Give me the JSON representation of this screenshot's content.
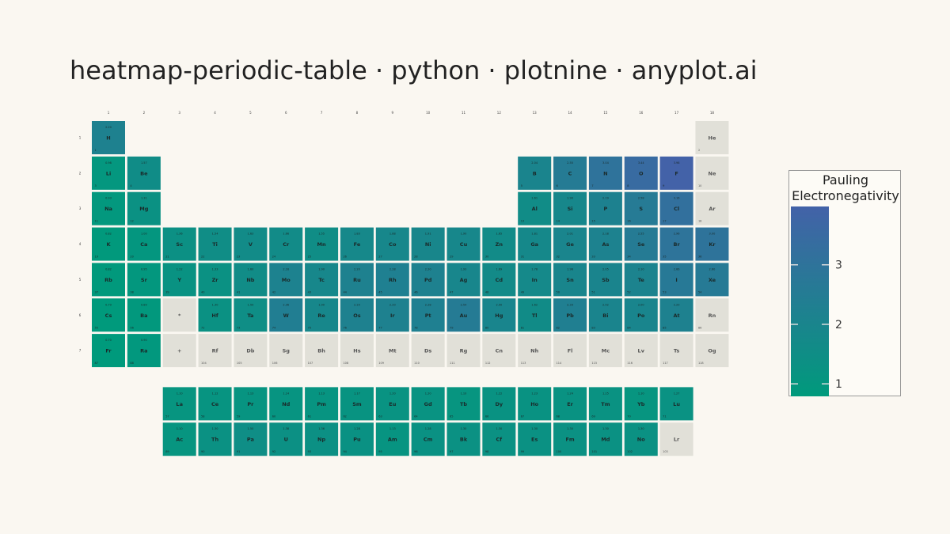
{
  "title": "heatmap-periodic-table · python · plotnine · anyplot.ai",
  "legend": {
    "title_line1": "Pauling",
    "title_line2": "Electronegativity",
    "ticks": [
      1,
      2,
      3
    ]
  },
  "colors": {
    "low": "#009a7c",
    "high": "#4362a8",
    "missing": "#e1e0d8",
    "background": "#faf7f1"
  },
  "chart_data": {
    "type": "heatmap",
    "title": "heatmap-periodic-table · python · plotnine · anyplot.ai",
    "colorbar_label": "Pauling Electronegativity",
    "color_range": [
      0.79,
      3.98
    ],
    "group_labels": [
      "1",
      "2",
      "3",
      "4",
      "5",
      "6",
      "7",
      "8",
      "9",
      "10",
      "11",
      "12",
      "13",
      "14",
      "15",
      "16",
      "17",
      "18"
    ],
    "period_labels": [
      "1",
      "2",
      "3",
      "4",
      "5",
      "6",
      "7"
    ],
    "elements": [
      {
        "n": 1,
        "s": "H",
        "p": 1,
        "g": 1,
        "en": 2.2
      },
      {
        "n": 2,
        "s": "He",
        "p": 1,
        "g": 18,
        "en": null
      },
      {
        "n": 3,
        "s": "Li",
        "p": 2,
        "g": 1,
        "en": 0.98
      },
      {
        "n": 4,
        "s": "Be",
        "p": 2,
        "g": 2,
        "en": 1.57
      },
      {
        "n": 5,
        "s": "B",
        "p": 2,
        "g": 13,
        "en": 2.04
      },
      {
        "n": 6,
        "s": "C",
        "p": 2,
        "g": 14,
        "en": 2.55
      },
      {
        "n": 7,
        "s": "N",
        "p": 2,
        "g": 15,
        "en": 3.04
      },
      {
        "n": 8,
        "s": "O",
        "p": 2,
        "g": 16,
        "en": 3.44
      },
      {
        "n": 9,
        "s": "F",
        "p": 2,
        "g": 17,
        "en": 3.98
      },
      {
        "n": 10,
        "s": "Ne",
        "p": 2,
        "g": 18,
        "en": null
      },
      {
        "n": 11,
        "s": "Na",
        "p": 3,
        "g": 1,
        "en": 0.93
      },
      {
        "n": 12,
        "s": "Mg",
        "p": 3,
        "g": 2,
        "en": 1.31
      },
      {
        "n": 13,
        "s": "Al",
        "p": 3,
        "g": 13,
        "en": 1.61
      },
      {
        "n": 14,
        "s": "Si",
        "p": 3,
        "g": 14,
        "en": 1.9
      },
      {
        "n": 15,
        "s": "P",
        "p": 3,
        "g": 15,
        "en": 2.19
      },
      {
        "n": 16,
        "s": "S",
        "p": 3,
        "g": 16,
        "en": 2.58
      },
      {
        "n": 17,
        "s": "Cl",
        "p": 3,
        "g": 17,
        "en": 3.16
      },
      {
        "n": 18,
        "s": "Ar",
        "p": 3,
        "g": 18,
        "en": null
      },
      {
        "n": 19,
        "s": "K",
        "p": 4,
        "g": 1,
        "en": 0.82
      },
      {
        "n": 20,
        "s": "Ca",
        "p": 4,
        "g": 2,
        "en": 1.0
      },
      {
        "n": 21,
        "s": "Sc",
        "p": 4,
        "g": 3,
        "en": 1.36
      },
      {
        "n": 22,
        "s": "Ti",
        "p": 4,
        "g": 4,
        "en": 1.54
      },
      {
        "n": 23,
        "s": "V",
        "p": 4,
        "g": 5,
        "en": 1.63
      },
      {
        "n": 24,
        "s": "Cr",
        "p": 4,
        "g": 6,
        "en": 1.66
      },
      {
        "n": 25,
        "s": "Mn",
        "p": 4,
        "g": 7,
        "en": 1.55
      },
      {
        "n": 26,
        "s": "Fe",
        "p": 4,
        "g": 8,
        "en": 1.83
      },
      {
        "n": 27,
        "s": "Co",
        "p": 4,
        "g": 9,
        "en": 1.88
      },
      {
        "n": 28,
        "s": "Ni",
        "p": 4,
        "g": 10,
        "en": 1.91
      },
      {
        "n": 29,
        "s": "Cu",
        "p": 4,
        "g": 11,
        "en": 1.9
      },
      {
        "n": 30,
        "s": "Zn",
        "p": 4,
        "g": 12,
        "en": 1.65
      },
      {
        "n": 31,
        "s": "Ga",
        "p": 4,
        "g": 13,
        "en": 1.81
      },
      {
        "n": 32,
        "s": "Ge",
        "p": 4,
        "g": 14,
        "en": 2.01
      },
      {
        "n": 33,
        "s": "As",
        "p": 4,
        "g": 15,
        "en": 2.18
      },
      {
        "n": 34,
        "s": "Se",
        "p": 4,
        "g": 16,
        "en": 2.55
      },
      {
        "n": 35,
        "s": "Br",
        "p": 4,
        "g": 17,
        "en": 2.96
      },
      {
        "n": 36,
        "s": "Kr",
        "p": 4,
        "g": 18,
        "en": 3.0
      },
      {
        "n": 37,
        "s": "Rb",
        "p": 5,
        "g": 1,
        "en": 0.82
      },
      {
        "n": 38,
        "s": "Sr",
        "p": 5,
        "g": 2,
        "en": 0.95
      },
      {
        "n": 39,
        "s": "Y",
        "p": 5,
        "g": 3,
        "en": 1.22
      },
      {
        "n": 40,
        "s": "Zr",
        "p": 5,
        "g": 4,
        "en": 1.33
      },
      {
        "n": 41,
        "s": "Nb",
        "p": 5,
        "g": 5,
        "en": 1.6
      },
      {
        "n": 42,
        "s": "Mo",
        "p": 5,
        "g": 6,
        "en": 2.16
      },
      {
        "n": 43,
        "s": "Tc",
        "p": 5,
        "g": 7,
        "en": 1.9
      },
      {
        "n": 44,
        "s": "Ru",
        "p": 5,
        "g": 8,
        "en": 2.2
      },
      {
        "n": 45,
        "s": "Rh",
        "p": 5,
        "g": 9,
        "en": 2.28
      },
      {
        "n": 46,
        "s": "Pd",
        "p": 5,
        "g": 10,
        "en": 2.2
      },
      {
        "n": 47,
        "s": "Ag",
        "p": 5,
        "g": 11,
        "en": 1.93
      },
      {
        "n": 48,
        "s": "Cd",
        "p": 5,
        "g": 12,
        "en": 1.69
      },
      {
        "n": 49,
        "s": "In",
        "p": 5,
        "g": 13,
        "en": 1.78
      },
      {
        "n": 50,
        "s": "Sn",
        "p": 5,
        "g": 14,
        "en": 1.96
      },
      {
        "n": 51,
        "s": "Sb",
        "p": 5,
        "g": 15,
        "en": 2.05
      },
      {
        "n": 52,
        "s": "Te",
        "p": 5,
        "g": 16,
        "en": 2.1
      },
      {
        "n": 53,
        "s": "I",
        "p": 5,
        "g": 17,
        "en": 2.66
      },
      {
        "n": 54,
        "s": "Xe",
        "p": 5,
        "g": 18,
        "en": 2.6
      },
      {
        "n": 55,
        "s": "Cs",
        "p": 6,
        "g": 1,
        "en": 0.79
      },
      {
        "n": 56,
        "s": "Ba",
        "p": 6,
        "g": 2,
        "en": 0.89
      },
      {
        "n": null,
        "s": "*",
        "p": 6,
        "g": 3,
        "en": null
      },
      {
        "n": 72,
        "s": "Hf",
        "p": 6,
        "g": 4,
        "en": 1.3
      },
      {
        "n": 73,
        "s": "Ta",
        "p": 6,
        "g": 5,
        "en": 1.5
      },
      {
        "n": 74,
        "s": "W",
        "p": 6,
        "g": 6,
        "en": 2.36
      },
      {
        "n": 75,
        "s": "Re",
        "p": 6,
        "g": 7,
        "en": 1.9
      },
      {
        "n": 76,
        "s": "Os",
        "p": 6,
        "g": 8,
        "en": 2.2
      },
      {
        "n": 77,
        "s": "Ir",
        "p": 6,
        "g": 9,
        "en": 2.2
      },
      {
        "n": 78,
        "s": "Pt",
        "p": 6,
        "g": 10,
        "en": 2.28
      },
      {
        "n": 79,
        "s": "Au",
        "p": 6,
        "g": 11,
        "en": 2.54
      },
      {
        "n": 80,
        "s": "Hg",
        "p": 6,
        "g": 12,
        "en": 2.0
      },
      {
        "n": 81,
        "s": "Tl",
        "p": 6,
        "g": 13,
        "en": 1.62
      },
      {
        "n": 82,
        "s": "Pb",
        "p": 6,
        "g": 14,
        "en": 2.33
      },
      {
        "n": 83,
        "s": "Bi",
        "p": 6,
        "g": 15,
        "en": 2.02
      },
      {
        "n": 84,
        "s": "Po",
        "p": 6,
        "g": 16,
        "en": 2.0
      },
      {
        "n": 85,
        "s": "At",
        "p": 6,
        "g": 17,
        "en": 2.2
      },
      {
        "n": 86,
        "s": "Rn",
        "p": 6,
        "g": 18,
        "en": null
      },
      {
        "n": 87,
        "s": "Fr",
        "p": 7,
        "g": 1,
        "en": 0.7
      },
      {
        "n": 88,
        "s": "Ra",
        "p": 7,
        "g": 2,
        "en": 0.9
      },
      {
        "n": null,
        "s": "+",
        "p": 7,
        "g": 3,
        "en": null
      },
      {
        "n": 104,
        "s": "Rf",
        "p": 7,
        "g": 4,
        "en": null
      },
      {
        "n": 105,
        "s": "Db",
        "p": 7,
        "g": 5,
        "en": null
      },
      {
        "n": 106,
        "s": "Sg",
        "p": 7,
        "g": 6,
        "en": null
      },
      {
        "n": 107,
        "s": "Bh",
        "p": 7,
        "g": 7,
        "en": null
      },
      {
        "n": 108,
        "s": "Hs",
        "p": 7,
        "g": 8,
        "en": null
      },
      {
        "n": 109,
        "s": "Mt",
        "p": 7,
        "g": 9,
        "en": null
      },
      {
        "n": 110,
        "s": "Ds",
        "p": 7,
        "g": 10,
        "en": null
      },
      {
        "n": 111,
        "s": "Rg",
        "p": 7,
        "g": 11,
        "en": null
      },
      {
        "n": 112,
        "s": "Cn",
        "p": 7,
        "g": 12,
        "en": null
      },
      {
        "n": 113,
        "s": "Nh",
        "p": 7,
        "g": 13,
        "en": null
      },
      {
        "n": 114,
        "s": "Fl",
        "p": 7,
        "g": 14,
        "en": null
      },
      {
        "n": 115,
        "s": "Mc",
        "p": 7,
        "g": 15,
        "en": null
      },
      {
        "n": 116,
        "s": "Lv",
        "p": 7,
        "g": 16,
        "en": null
      },
      {
        "n": 117,
        "s": "Ts",
        "p": 7,
        "g": 17,
        "en": null
      },
      {
        "n": 118,
        "s": "Og",
        "p": 7,
        "g": 18,
        "en": null
      },
      {
        "n": 57,
        "s": "La",
        "p": "La",
        "g": 3,
        "en": 1.1
      },
      {
        "n": 58,
        "s": "Ce",
        "p": "La",
        "g": 4,
        "en": 1.12
      },
      {
        "n": 59,
        "s": "Pr",
        "p": "La",
        "g": 5,
        "en": 1.13
      },
      {
        "n": 60,
        "s": "Nd",
        "p": "La",
        "g": 6,
        "en": 1.14
      },
      {
        "n": 61,
        "s": "Pm",
        "p": "La",
        "g": 7,
        "en": 1.13
      },
      {
        "n": 62,
        "s": "Sm",
        "p": "La",
        "g": 8,
        "en": 1.17
      },
      {
        "n": 63,
        "s": "Eu",
        "p": "La",
        "g": 9,
        "en": 1.2
      },
      {
        "n": 64,
        "s": "Gd",
        "p": "La",
        "g": 10,
        "en": 1.2
      },
      {
        "n": 65,
        "s": "Tb",
        "p": "La",
        "g": 11,
        "en": 1.1
      },
      {
        "n": 66,
        "s": "Dy",
        "p": "La",
        "g": 12,
        "en": 1.22
      },
      {
        "n": 67,
        "s": "Ho",
        "p": "La",
        "g": 13,
        "en": 1.23
      },
      {
        "n": 68,
        "s": "Er",
        "p": "La",
        "g": 14,
        "en": 1.24
      },
      {
        "n": 69,
        "s": "Tm",
        "p": "La",
        "g": 15,
        "en": 1.25
      },
      {
        "n": 70,
        "s": "Yb",
        "p": "La",
        "g": 16,
        "en": 1.1
      },
      {
        "n": 71,
        "s": "Lu",
        "p": "La",
        "g": 17,
        "en": 1.27
      },
      {
        "n": 89,
        "s": "Ac",
        "p": "Ac",
        "g": 3,
        "en": 1.1
      },
      {
        "n": 90,
        "s": "Th",
        "p": "Ac",
        "g": 4,
        "en": 1.3
      },
      {
        "n": 91,
        "s": "Pa",
        "p": "Ac",
        "g": 5,
        "en": 1.5
      },
      {
        "n": 92,
        "s": "U",
        "p": "Ac",
        "g": 6,
        "en": 1.38
      },
      {
        "n": 93,
        "s": "Np",
        "p": "Ac",
        "g": 7,
        "en": 1.36
      },
      {
        "n": 94,
        "s": "Pu",
        "p": "Ac",
        "g": 8,
        "en": 1.28
      },
      {
        "n": 95,
        "s": "Am",
        "p": "Ac",
        "g": 9,
        "en": 1.13
      },
      {
        "n": 96,
        "s": "Cm",
        "p": "Ac",
        "g": 10,
        "en": 1.28
      },
      {
        "n": 97,
        "s": "Bk",
        "p": "Ac",
        "g": 11,
        "en": 1.3
      },
      {
        "n": 98,
        "s": "Cf",
        "p": "Ac",
        "g": 12,
        "en": 1.3
      },
      {
        "n": 99,
        "s": "Es",
        "p": "Ac",
        "g": 13,
        "en": 1.3
      },
      {
        "n": 100,
        "s": "Fm",
        "p": "Ac",
        "g": 14,
        "en": 1.3
      },
      {
        "n": 101,
        "s": "Md",
        "p": "Ac",
        "g": 15,
        "en": 1.3
      },
      {
        "n": 102,
        "s": "No",
        "p": "Ac",
        "g": 16,
        "en": 1.3
      },
      {
        "n": 103,
        "s": "Lr",
        "p": "Ac",
        "g": 17,
        "en": null
      }
    ]
  }
}
